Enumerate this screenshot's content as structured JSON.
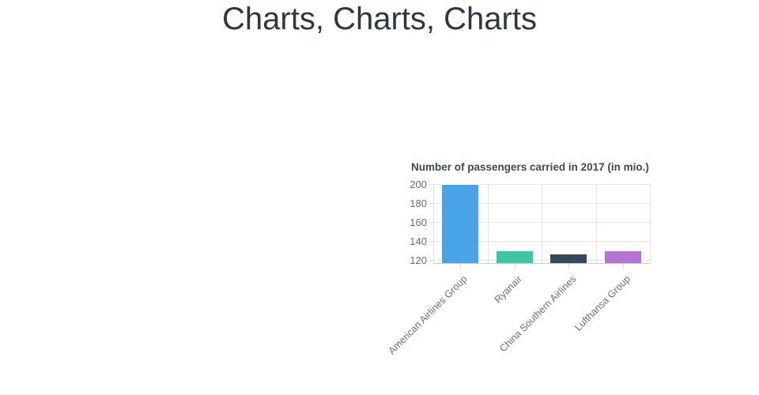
{
  "page": {
    "title": "Charts, Charts, Charts"
  },
  "chart_data": {
    "type": "bar",
    "title": "Number of passengers carried in 2017 (in mio.)",
    "categories": [
      "American Airlines Group",
      "Ryanair",
      "China Southern Airlines",
      "Lufthansa Group"
    ],
    "values": [
      199.7,
      130.3,
      126.3,
      130.0
    ],
    "xlabel": "",
    "ylabel": "",
    "ylim": [
      116.7,
      200
    ],
    "yticks": [
      120,
      140,
      160,
      180,
      200
    ],
    "bar_colors": [
      "#48a3e8",
      "#3ac7a2",
      "#35495c",
      "#b574d4"
    ],
    "grid": true,
    "legend": false,
    "colors": {
      "page_title": "#2c3742",
      "chart_title": "#3e4a55",
      "axis_label": "#6c6f75",
      "gridline": "#e6e6e6",
      "axis_line": "#cccccc"
    }
  }
}
